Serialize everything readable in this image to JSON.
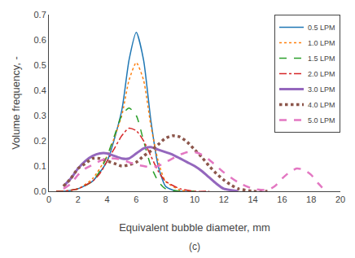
{
  "chart_data": {
    "type": "line",
    "xlabel": "Equivalent bubble diameter, mm",
    "ylabel": "Volume frequency, -",
    "xlim": [
      0,
      20
    ],
    "ylim": [
      0,
      0.7
    ],
    "xticks": [
      0,
      2,
      4,
      6,
      8,
      10,
      12,
      14,
      16,
      18,
      20
    ],
    "yticks": [
      {
        "value": 0.0,
        "label": "0.0"
      },
      0.1,
      0.2,
      0.3,
      0.4,
      0.5,
      0.6,
      0.7
    ],
    "annotations": [
      "(c)"
    ],
    "grid": false,
    "legend": "upper right",
    "series": [
      {
        "name": "0.5 LPM",
        "line_style": "solid",
        "x": [
          0.5,
          1.0,
          2.0,
          3.0,
          4.0,
          5.0,
          5.5,
          6.0,
          6.5,
          7.0,
          7.5,
          8.0,
          8.5,
          9.0,
          10.0
        ],
        "values": [
          0.0,
          0.0,
          0.01,
          0.04,
          0.12,
          0.32,
          0.52,
          0.63,
          0.52,
          0.28,
          0.1,
          0.02,
          0.005,
          0.0,
          0.0
        ]
      },
      {
        "name": "1.0 LPM",
        "line_style": "dotted",
        "x": [
          0.5,
          1.0,
          2.0,
          3.0,
          4.0,
          5.0,
          5.5,
          6.0,
          6.5,
          7.0,
          7.5,
          8.0,
          9.0,
          10.0
        ],
        "values": [
          0.0,
          0.0,
          0.01,
          0.05,
          0.14,
          0.3,
          0.44,
          0.51,
          0.44,
          0.26,
          0.12,
          0.04,
          0.005,
          0.0
        ]
      },
      {
        "name": "1.5 LPM",
        "line_style": "dashed",
        "x": [
          0.5,
          1.0,
          2.0,
          3.0,
          3.5,
          4.0,
          4.5,
          5.0,
          5.5,
          6.0,
          6.5,
          7.0,
          7.5,
          8.0,
          9.0,
          10.0
        ],
        "values": [
          0.0,
          0.0,
          0.01,
          0.04,
          0.08,
          0.14,
          0.22,
          0.3,
          0.33,
          0.3,
          0.2,
          0.1,
          0.04,
          0.01,
          0.0,
          0.0
        ]
      },
      {
        "name": "2.0 LPM",
        "line_style": "dashdot",
        "x": [
          0.5,
          1.0,
          2.0,
          3.0,
          3.5,
          4.0,
          4.5,
          5.0,
          5.5,
          6.0,
          6.5,
          7.0,
          7.5,
          8.0,
          9.0,
          10.0,
          11.0
        ],
        "values": [
          0.0,
          0.0,
          0.01,
          0.04,
          0.07,
          0.12,
          0.17,
          0.22,
          0.25,
          0.24,
          0.2,
          0.14,
          0.08,
          0.04,
          0.01,
          0.0,
          0.0
        ]
      },
      {
        "name": "3.0 LPM",
        "line_style": "solid",
        "x": [
          1.0,
          1.5,
          2.0,
          2.5,
          3.0,
          3.5,
          4.0,
          4.5,
          5.0,
          5.5,
          6.0,
          6.5,
          7.0,
          7.5,
          8.0,
          8.5,
          9.0,
          9.5,
          10.0,
          10.5,
          11.0,
          11.5,
          12.0,
          13.0
        ],
        "values": [
          0.02,
          0.05,
          0.09,
          0.12,
          0.14,
          0.15,
          0.15,
          0.14,
          0.13,
          0.13,
          0.15,
          0.17,
          0.175,
          0.165,
          0.155,
          0.145,
          0.13,
          0.115,
          0.1,
          0.08,
          0.055,
          0.03,
          0.01,
          0.0
        ]
      },
      {
        "name": "4.0 LPM",
        "line_style": "dotted",
        "x": [
          1.0,
          1.5,
          2.0,
          2.5,
          3.0,
          3.5,
          4.0,
          4.5,
          5.0,
          5.5,
          6.0,
          6.5,
          7.0,
          7.5,
          8.0,
          8.5,
          9.0,
          9.5,
          10.0,
          10.5,
          11.0,
          11.5,
          12.0,
          12.5,
          13.0,
          14.0,
          15.0
        ],
        "values": [
          0.02,
          0.05,
          0.09,
          0.11,
          0.13,
          0.13,
          0.12,
          0.11,
          0.1,
          0.105,
          0.115,
          0.14,
          0.16,
          0.185,
          0.21,
          0.22,
          0.215,
          0.195,
          0.165,
          0.135,
          0.1,
          0.07,
          0.045,
          0.025,
          0.01,
          0.0,
          0.0
        ]
      },
      {
        "name": "5.0 LPM",
        "line_style": "dashed",
        "x": [
          1.0,
          1.5,
          2.0,
          2.5,
          3.0,
          3.5,
          4.0,
          4.5,
          5.0,
          5.5,
          6.0,
          6.5,
          7.0,
          7.5,
          8.0,
          8.5,
          9.0,
          9.5,
          10.0,
          10.5,
          11.0,
          11.5,
          12.0,
          13.0,
          14.0,
          15.0,
          15.5,
          16.0,
          16.5,
          17.0,
          17.5,
          18.0,
          18.5,
          19.0
        ],
        "values": [
          0.01,
          0.03,
          0.065,
          0.09,
          0.105,
          0.12,
          0.13,
          0.13,
          0.125,
          0.115,
          0.105,
          0.1,
          0.095,
          0.1,
          0.115,
          0.13,
          0.145,
          0.155,
          0.155,
          0.145,
          0.125,
          0.1,
          0.075,
          0.035,
          0.01,
          0.005,
          0.02,
          0.05,
          0.075,
          0.09,
          0.085,
          0.065,
          0.03,
          0.0
        ]
      }
    ]
  }
}
